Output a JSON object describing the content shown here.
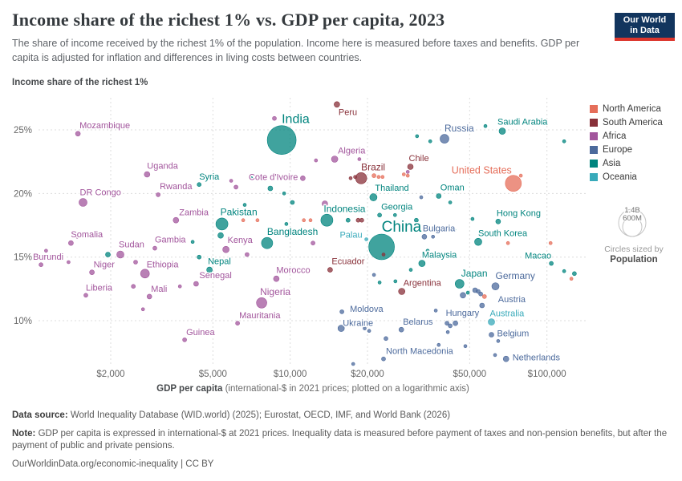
{
  "header": {
    "title": "Income share of the richest 1% vs. GDP per capita, 2023",
    "subtitle": "The share of income received by the richest 1% of the population. Income here is measured before taxes and benefits. GDP per capita is adjusted for inflation and differences in living costs between countries.",
    "logo": {
      "line1": "Our World",
      "line2": "in Data",
      "bg": "#12355e",
      "accent": "#dc352c"
    }
  },
  "axes": {
    "y_heading": "Income share of the richest 1%",
    "x_title_bold": "GDP per capita",
    "x_title_rest": " (international-$ in 2021 prices; plotted on a logarithmic axis)"
  },
  "legend": {
    "items": [
      {
        "label": "North America",
        "color": "#e56e5a",
        "code": "na"
      },
      {
        "label": "South America",
        "color": "#883039",
        "code": "sa"
      },
      {
        "label": "Africa",
        "color": "#a2559c",
        "code": "af"
      },
      {
        "label": "Europe",
        "color": "#4c6a9c",
        "code": "eu"
      },
      {
        "label": "Asia",
        "color": "#00847e",
        "code": "as"
      },
      {
        "label": "Oceania",
        "color": "#38aaba",
        "code": "oc"
      }
    ],
    "size": {
      "big": "1.4B",
      "small": "600M",
      "caption1": "Circles sized by",
      "caption2": "Population"
    }
  },
  "footer": {
    "datasource_label": "Data source:",
    "datasource": " World Inequality Database (WID.world) (2025); Eurostat, OECD, IMF, and World Bank (2026)",
    "note_label": "Note:",
    "note": " GDP per capita is expressed in international-$ at 2021 prices. Inequality data is measured before payment of taxes and non-pension benefits, but after the payment of public and private pensions.",
    "license": "OurWorldinData.org/economic-inequality | CC BY"
  },
  "chart_data": {
    "type": "scatter",
    "title": "Income share of the richest 1% vs. GDP per capita, 2023",
    "xlabel": "GDP per capita (international-$ in 2021 prices; plotted on a logarithmic axis)",
    "ylabel": "Income share of the richest 1%",
    "x_scale": "log",
    "x_domain": [
      1050,
      140000
    ],
    "y_domain": [
      6.3,
      27.5
    ],
    "x_ticks": [
      2000,
      5000,
      10000,
      20000,
      50000,
      100000
    ],
    "x_tick_labels": [
      "$2,000",
      "$5,000",
      "$10,000",
      "$20,000",
      "$50,000",
      "$100,000"
    ],
    "y_ticks": [
      25,
      20,
      15,
      10
    ],
    "y_tick_labels": [
      "25%",
      "20%",
      "15%",
      "10%"
    ],
    "grid": true,
    "legend_position": "right",
    "continent_colors": {
      "na": "#e56e5a",
      "sa": "#883039",
      "af": "#a2559c",
      "eu": "#4c6a9c",
      "as": "#00847e",
      "oc": "#38aaba"
    },
    "points": [
      {
        "n": "Mozambique",
        "c": "af",
        "g": 1490,
        "s": 24.7,
        "r": 3,
        "l": [
          2,
          -7,
          "s"
        ]
      },
      {
        "n": "Uganda",
        "c": "af",
        "g": 2770,
        "s": 21.5,
        "r": 3.5,
        "l": [
          0,
          -7,
          "s"
        ]
      },
      {
        "n": "DR Congo",
        "c": "af",
        "g": 1560,
        "s": 19.3,
        "r": 5,
        "l": [
          -4,
          -9,
          "s"
        ]
      },
      {
        "n": "Rwanda",
        "c": "af",
        "g": 3060,
        "s": 19.9,
        "r": 2.5,
        "l": [
          2,
          -7,
          "s"
        ]
      },
      {
        "n": "Zambia",
        "c": "af",
        "g": 3590,
        "s": 17.9,
        "r": 3.5,
        "l": [
          4,
          -6,
          "s"
        ]
      },
      {
        "n": "Somalia",
        "c": "af",
        "g": 1400,
        "s": 16.1,
        "r": 3,
        "l": [
          0,
          -7,
          "s"
        ]
      },
      {
        "n": "Burundi",
        "c": "af",
        "g": 1070,
        "s": 14.4,
        "r": 2.5,
        "l": [
          -10,
          -6,
          "s"
        ]
      },
      {
        "n": "Sudan",
        "c": "af",
        "g": 2180,
        "s": 15.2,
        "r": 4.5,
        "l": [
          -2,
          -9,
          "s"
        ]
      },
      {
        "n": "Gambia",
        "c": "af",
        "g": 2970,
        "s": 15.7,
        "r": 2.5,
        "l": [
          0,
          -7,
          "s"
        ]
      },
      {
        "n": "Niger",
        "c": "af",
        "g": 1690,
        "s": 13.8,
        "r": 3,
        "l": [
          2,
          -6,
          "s"
        ]
      },
      {
        "n": "Ethiopia",
        "c": "af",
        "g": 2720,
        "s": 13.7,
        "r": 5.5,
        "l": [
          2,
          -8,
          "s"
        ]
      },
      {
        "n": "Liberia",
        "c": "af",
        "g": 1600,
        "s": 12.0,
        "r": 2.5,
        "l": [
          0,
          -6,
          "s"
        ]
      },
      {
        "n": "Mali",
        "c": "af",
        "g": 2830,
        "s": 11.9,
        "r": 3,
        "l": [
          2,
          -6,
          "s"
        ]
      },
      {
        "n": "Guinea",
        "c": "af",
        "g": 3880,
        "s": 8.5,
        "r": 2.5,
        "l": [
          2,
          -6,
          "s"
        ]
      },
      {
        "n": "Senegal",
        "c": "af",
        "g": 4300,
        "s": 12.9,
        "r": 3,
        "l": [
          4,
          -7,
          "s"
        ]
      },
      {
        "n": "Nigeria",
        "c": "af",
        "g": 7740,
        "s": 11.4,
        "r": 6.5,
        "l": [
          -2,
          -10,
          "s",
          12
        ]
      },
      {
        "n": "Mauritania",
        "c": "af",
        "g": 6240,
        "s": 9.8,
        "r": 2.5,
        "l": [
          2,
          -6,
          "s"
        ]
      },
      {
        "n": "Morocco",
        "c": "af",
        "g": 8830,
        "s": 13.3,
        "r": 3.5,
        "l": [
          0,
          -7,
          "s"
        ]
      },
      {
        "n": "Kenya",
        "c": "af",
        "g": 5620,
        "s": 15.6,
        "r": 4,
        "l": [
          2,
          -8,
          "s"
        ]
      },
      {
        "n": "Algeria",
        "c": "af",
        "g": 14900,
        "s": 22.7,
        "r": 4,
        "l": [
          4,
          -7,
          "s"
        ]
      },
      {
        "n": "Cote d'Ivoire",
        "c": "af",
        "g": 11200,
        "s": 21.2,
        "r": 3,
        "l": [
          -6,
          2,
          "e"
        ]
      },
      {
        "n": "India",
        "c": "as",
        "g": 9270,
        "s": 24.2,
        "r": 18,
        "l": [
          0,
          -21,
          "s",
          16
        ]
      },
      {
        "n": "Syria",
        "c": "as",
        "g": 4420,
        "s": 20.7,
        "r": 2.5,
        "l": [
          0,
          -6,
          "s"
        ]
      },
      {
        "n": "Pakistan",
        "c": "as",
        "g": 5420,
        "s": 17.6,
        "r": 7.5,
        "l": [
          -2,
          -11,
          "s",
          12
        ]
      },
      {
        "n": "Bangladesh",
        "c": "as",
        "g": 8130,
        "s": 16.1,
        "r": 7,
        "l": [
          0,
          -10,
          "s",
          12
        ]
      },
      {
        "n": "Indonesia",
        "c": "as",
        "g": 13900,
        "s": 17.9,
        "r": 7.5,
        "l": [
          -4,
          -10,
          "s",
          12
        ]
      },
      {
        "n": "Thailand",
        "c": "as",
        "g": 21100,
        "s": 19.7,
        "r": 4.5,
        "l": [
          2,
          -8,
          "s"
        ]
      },
      {
        "n": "China",
        "c": "as",
        "g": 22700,
        "s": 15.8,
        "r": 16,
        "l": [
          0,
          -19,
          "s",
          19
        ]
      },
      {
        "n": "Georgia",
        "c": "as",
        "g": 22300,
        "s": 18.3,
        "r": 2.5,
        "l": [
          2,
          -7,
          "s"
        ]
      },
      {
        "n": "Oman",
        "c": "as",
        "g": 37900,
        "s": 19.8,
        "r": 3,
        "l": [
          2,
          -7,
          "s"
        ]
      },
      {
        "n": "Saudi Arabia",
        "c": "as",
        "g": 67000,
        "s": 24.9,
        "r": 4,
        "l": [
          -6,
          -8,
          "s"
        ]
      },
      {
        "n": "Malaysia",
        "c": "as",
        "g": 32600,
        "s": 14.5,
        "r": 4,
        "l": [
          0,
          -7,
          "s"
        ]
      },
      {
        "n": "Japan",
        "c": "as",
        "g": 45700,
        "s": 12.9,
        "r": 5.5,
        "l": [
          2,
          -9,
          "s",
          12
        ]
      },
      {
        "n": "South Korea",
        "c": "as",
        "g": 54000,
        "s": 16.2,
        "r": 4.5,
        "l": [
          0,
          -7,
          "s"
        ]
      },
      {
        "n": "Hong Kong",
        "c": "as",
        "g": 64600,
        "s": 17.8,
        "r": 3,
        "l": [
          -2,
          -7,
          "s"
        ]
      },
      {
        "n": "Macao",
        "c": "as",
        "g": 104000,
        "s": 14.5,
        "r": 2.5,
        "l": [
          0,
          -6,
          "e"
        ]
      },
      {
        "n": "Nepal",
        "c": "as",
        "g": 4850,
        "s": 14.0,
        "r": 3.5,
        "l": [
          -2,
          -7,
          "s"
        ]
      },
      {
        "n": "Russia",
        "c": "eu",
        "g": 39900,
        "s": 24.3,
        "r": 5.5,
        "l": [
          0,
          -9,
          "s",
          12
        ]
      },
      {
        "n": "Moldova",
        "c": "eu",
        "g": 15900,
        "s": 10.7,
        "r": 2.5,
        "l": [
          10,
          0,
          "s"
        ]
      },
      {
        "n": "Ukraine",
        "c": "eu",
        "g": 15800,
        "s": 9.4,
        "r": 4,
        "l": [
          2,
          -3,
          "s"
        ]
      },
      {
        "n": "Bulgaria",
        "c": "eu",
        "g": 33300,
        "s": 16.6,
        "r": 3,
        "l": [
          -2,
          -7,
          "s"
        ]
      },
      {
        "n": "Belarus",
        "c": "eu",
        "g": 27100,
        "s": 9.3,
        "r": 3,
        "l": [
          2,
          -6,
          "s"
        ]
      },
      {
        "n": "Hungary",
        "c": "eu",
        "g": 44000,
        "s": 9.8,
        "r": 3,
        "l": [
          -12,
          -9,
          "s"
        ]
      },
      {
        "n": "Germany",
        "c": "eu",
        "g": 63000,
        "s": 12.7,
        "r": 4.5,
        "l": [
          0,
          -9,
          "s",
          12
        ]
      },
      {
        "n": "Austria",
        "c": "eu",
        "g": 55900,
        "s": 11.2,
        "r": 3,
        "l": [
          20,
          -4,
          "s"
        ]
      },
      {
        "n": "Belgium",
        "c": "eu",
        "g": 60800,
        "s": 8.9,
        "r": 3,
        "l": [
          7,
          2,
          "s"
        ]
      },
      {
        "n": "Netherlands",
        "c": "eu",
        "g": 69300,
        "s": 7.0,
        "r": 3.5,
        "l": [
          8,
          2,
          "s"
        ]
      },
      {
        "n": "North Macedonia",
        "c": "eu",
        "g": 23100,
        "s": 7.0,
        "r": 2.5,
        "l": [
          3,
          -6,
          "s"
        ]
      },
      {
        "n": "United States",
        "c": "na",
        "g": 74000,
        "s": 20.8,
        "r": 10,
        "l": [
          -2,
          -12,
          "e",
          12.5
        ]
      },
      {
        "n": "Peru",
        "c": "sa",
        "g": 15200,
        "s": 27.0,
        "r": 3.5,
        "l": [
          2,
          13,
          "s"
        ]
      },
      {
        "n": "Brazil",
        "c": "sa",
        "g": 18900,
        "s": 21.2,
        "r": 7,
        "l": [
          0,
          -10,
          "s",
          12
        ]
      },
      {
        "n": "Chile",
        "c": "sa",
        "g": 29400,
        "s": 22.1,
        "r": 3.5,
        "l": [
          -2,
          -7,
          "s"
        ]
      },
      {
        "n": "Ecuador",
        "c": "sa",
        "g": 14300,
        "s": 14.0,
        "r": 3,
        "l": [
          2,
          -7,
          "s"
        ]
      },
      {
        "n": "Argentina",
        "c": "sa",
        "g": 27200,
        "s": 12.3,
        "r": 4,
        "l": [
          2,
          -7,
          "s"
        ]
      },
      {
        "n": "Australia",
        "c": "oc",
        "g": 60800,
        "s": 9.9,
        "r": 4,
        "l": [
          -2,
          -7,
          "s"
        ]
      },
      {
        "n": "Palau",
        "c": "oc",
        "g": 19800,
        "s": 16.4,
        "r": 2,
        "l": [
          -5,
          -2,
          "e"
        ]
      }
    ],
    "bg_points": [
      [
        "af",
        8680,
        25.9,
        2.5
      ],
      [
        "af",
        12600,
        22.6,
        2
      ],
      [
        "af",
        18600,
        22.7,
        2
      ],
      [
        "af",
        28700,
        21.7,
        2
      ],
      [
        "af",
        6150,
        20.5,
        2.5
      ],
      [
        "af",
        5890,
        21.0,
        2
      ],
      [
        "af",
        13650,
        19.2,
        3.5
      ],
      [
        "af",
        6790,
        15.2,
        2.5
      ],
      [
        "af",
        12270,
        16.1,
        2.5
      ],
      [
        "af",
        1370,
        14.6,
        2
      ],
      [
        "af",
        1120,
        15.5,
        2
      ],
      [
        "af",
        2500,
        14.6,
        2.5
      ],
      [
        "af",
        2450,
        12.7,
        2.5
      ],
      [
        "af",
        3720,
        12.7,
        2
      ],
      [
        "af",
        2670,
        10.9,
        2
      ],
      [
        "af",
        1480,
        16.6,
        2
      ],
      [
        "sa",
        17200,
        21.2,
        2
      ],
      [
        "sa",
        17900,
        21.3,
        2
      ],
      [
        "sa",
        18400,
        17.9,
        2.5
      ],
      [
        "sa",
        19000,
        17.9,
        2.5
      ],
      [
        "sa",
        23100,
        15.2,
        2
      ],
      [
        "na",
        21200,
        21.4,
        2.5
      ],
      [
        "na",
        22100,
        21.3,
        2
      ],
      [
        "na",
        22900,
        21.3,
        2
      ],
      [
        "na",
        27700,
        21.5,
        2
      ],
      [
        "na",
        28700,
        21.4,
        2
      ],
      [
        "na",
        79100,
        21.4,
        2
      ],
      [
        "na",
        6560,
        17.9,
        2
      ],
      [
        "na",
        7460,
        17.9,
        2
      ],
      [
        "na",
        11300,
        17.9,
        2
      ],
      [
        "na",
        12000,
        17.9,
        2
      ],
      [
        "na",
        57100,
        11.9,
        2.5
      ],
      [
        "na",
        70500,
        16.1,
        2
      ],
      [
        "na",
        103300,
        16.1,
        2
      ],
      [
        "na",
        124500,
        13.3,
        2
      ],
      [
        "as",
        35100,
        24.1,
        2
      ],
      [
        "as",
        57600,
        25.3,
        2
      ],
      [
        "as",
        116700,
        24.1,
        2
      ],
      [
        "as",
        31200,
        24.5,
        2
      ],
      [
        "as",
        8370,
        20.4,
        3
      ],
      [
        "as",
        7050,
        21.2,
        2
      ],
      [
        "as",
        10200,
        19.3,
        2.5
      ],
      [
        "as",
        9470,
        20.0,
        2
      ],
      [
        "as",
        4420,
        15.0,
        2.5
      ],
      [
        "as",
        16800,
        17.9,
        2.5
      ],
      [
        "as",
        25600,
        18.3,
        2
      ],
      [
        "as",
        31000,
        17.9,
        2.5
      ],
      [
        "as",
        9660,
        17.6,
        2
      ],
      [
        "as",
        5360,
        16.7,
        3.5
      ],
      [
        "as",
        34300,
        15.5,
        2
      ],
      [
        "as",
        29500,
        14.0,
        2
      ],
      [
        "as",
        25700,
        13.1,
        2
      ],
      [
        "as",
        22300,
        13.0,
        2
      ],
      [
        "as",
        49200,
        12.2,
        2
      ],
      [
        "as",
        4170,
        16.2,
        2
      ],
      [
        "as",
        1950,
        15.2,
        3
      ],
      [
        "as",
        6650,
        19.1,
        2
      ],
      [
        "as",
        28100,
        17.4,
        2
      ],
      [
        "as",
        43600,
        17.1,
        2
      ],
      [
        "as",
        51300,
        18.0,
        2
      ],
      [
        "as",
        42000,
        19.3,
        2
      ],
      [
        "as",
        116700,
        13.9,
        2
      ],
      [
        "as",
        127900,
        13.7,
        2.5
      ],
      [
        "eu",
        21200,
        13.6,
        2
      ],
      [
        "eu",
        47100,
        12.0,
        3.5
      ],
      [
        "eu",
        52500,
        12.4,
        3
      ],
      [
        "eu",
        54000,
        12.3,
        2.5
      ],
      [
        "eu",
        55200,
        12.1,
        2.5
      ],
      [
        "eu",
        36900,
        10.8,
        2
      ],
      [
        "eu",
        40800,
        9.8,
        2.5
      ],
      [
        "eu",
        42000,
        9.6,
        2.5
      ],
      [
        "eu",
        41100,
        9.1,
        2
      ],
      [
        "eu",
        19500,
        9.4,
        2
      ],
      [
        "eu",
        20300,
        9.2,
        2
      ],
      [
        "eu",
        23600,
        8.6,
        2.5
      ],
      [
        "eu",
        37900,
        8.1,
        2
      ],
      [
        "eu",
        48100,
        8.0,
        2
      ],
      [
        "eu",
        64600,
        8.4,
        2
      ],
      [
        "eu",
        62800,
        7.3,
        2
      ],
      [
        "eu",
        36000,
        16.6,
        2
      ],
      [
        "eu",
        32400,
        19.7,
        2
      ],
      [
        "eu",
        17600,
        6.6,
        2
      ]
    ]
  }
}
